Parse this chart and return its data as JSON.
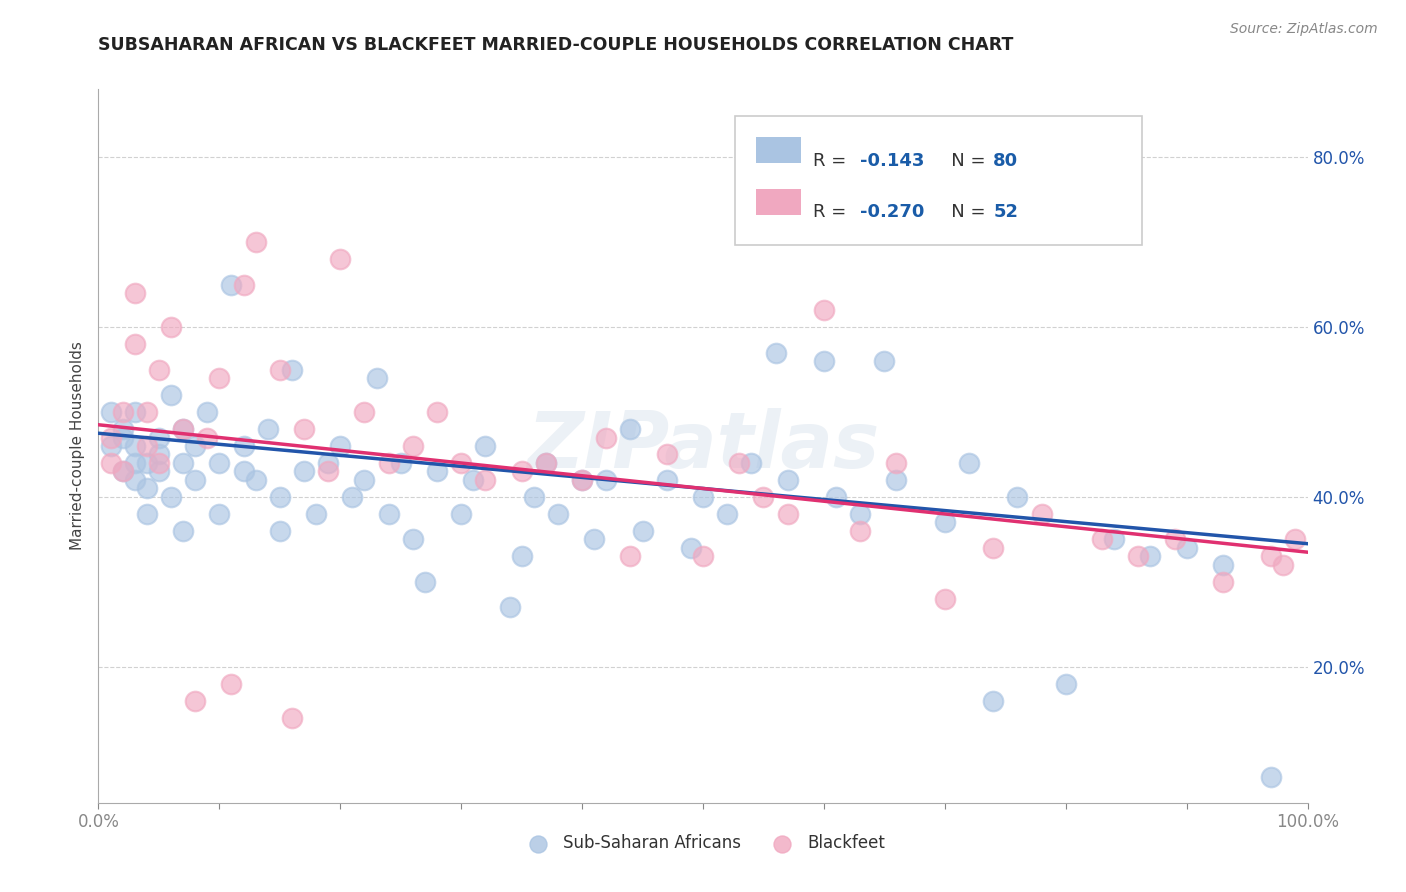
{
  "title": "SUBSAHARAN AFRICAN VS BLACKFEET MARRIED-COUPLE HOUSEHOLDS CORRELATION CHART",
  "source": "Source: ZipAtlas.com",
  "ylabel": "Married-couple Households",
  "legend_r_color": "#1a5ca8",
  "scatter_blue_color": "#aac4e2",
  "scatter_pink_color": "#f0a8c0",
  "line_blue_color": "#2255aa",
  "line_pink_color": "#e03070",
  "watermark": "ZIPatlas",
  "bg_color": "#ffffff",
  "grid_color": "#cccccc",
  "R_blue": -0.143,
  "N_blue": 80,
  "R_pink": -0.27,
  "N_pink": 52,
  "line_blue_start": 0.475,
  "line_blue_end": 0.345,
  "line_pink_start": 0.485,
  "line_pink_end": 0.335,
  "xmin": 0.0,
  "xmax": 1.0,
  "ymin": 0.04,
  "ymax": 0.88,
  "ytick_vals": [
    0.2,
    0.4,
    0.6,
    0.8
  ],
  "ytick_labels": [
    "20.0%",
    "40.0%",
    "60.0%",
    "80.0%"
  ],
  "xtick_vals": [
    0.0,
    0.1,
    0.2,
    0.3,
    0.4,
    0.5,
    0.6,
    0.7,
    0.8,
    0.9,
    1.0
  ],
  "blue_x": [
    0.01,
    0.01,
    0.02,
    0.02,
    0.02,
    0.03,
    0.03,
    0.03,
    0.03,
    0.04,
    0.04,
    0.04,
    0.05,
    0.05,
    0.05,
    0.06,
    0.06,
    0.07,
    0.07,
    0.07,
    0.08,
    0.08,
    0.09,
    0.1,
    0.1,
    0.11,
    0.12,
    0.12,
    0.13,
    0.14,
    0.15,
    0.15,
    0.16,
    0.17,
    0.18,
    0.19,
    0.2,
    0.21,
    0.22,
    0.23,
    0.24,
    0.25,
    0.26,
    0.27,
    0.28,
    0.3,
    0.31,
    0.32,
    0.34,
    0.35,
    0.36,
    0.37,
    0.38,
    0.4,
    0.41,
    0.42,
    0.44,
    0.45,
    0.47,
    0.49,
    0.5,
    0.52,
    0.54,
    0.56,
    0.57,
    0.6,
    0.61,
    0.63,
    0.65,
    0.66,
    0.7,
    0.72,
    0.74,
    0.76,
    0.8,
    0.84,
    0.87,
    0.9,
    0.93,
    0.97
  ],
  "blue_y": [
    0.46,
    0.5,
    0.47,
    0.43,
    0.48,
    0.44,
    0.42,
    0.46,
    0.5,
    0.44,
    0.41,
    0.38,
    0.45,
    0.43,
    0.47,
    0.52,
    0.4,
    0.44,
    0.48,
    0.36,
    0.42,
    0.46,
    0.5,
    0.44,
    0.38,
    0.65,
    0.43,
    0.46,
    0.42,
    0.48,
    0.36,
    0.4,
    0.55,
    0.43,
    0.38,
    0.44,
    0.46,
    0.4,
    0.42,
    0.54,
    0.38,
    0.44,
    0.35,
    0.3,
    0.43,
    0.38,
    0.42,
    0.46,
    0.27,
    0.33,
    0.4,
    0.44,
    0.38,
    0.42,
    0.35,
    0.42,
    0.48,
    0.36,
    0.42,
    0.34,
    0.4,
    0.38,
    0.44,
    0.57,
    0.42,
    0.56,
    0.4,
    0.38,
    0.56,
    0.42,
    0.37,
    0.44,
    0.16,
    0.4,
    0.18,
    0.35,
    0.33,
    0.34,
    0.32,
    0.07
  ],
  "pink_x": [
    0.01,
    0.01,
    0.02,
    0.02,
    0.03,
    0.03,
    0.04,
    0.04,
    0.05,
    0.05,
    0.06,
    0.07,
    0.08,
    0.09,
    0.1,
    0.11,
    0.12,
    0.13,
    0.15,
    0.16,
    0.17,
    0.19,
    0.2,
    0.22,
    0.24,
    0.26,
    0.28,
    0.3,
    0.32,
    0.35,
    0.37,
    0.4,
    0.42,
    0.44,
    0.47,
    0.5,
    0.53,
    0.55,
    0.57,
    0.6,
    0.63,
    0.66,
    0.7,
    0.74,
    0.78,
    0.83,
    0.86,
    0.89,
    0.93,
    0.97,
    0.98,
    0.99
  ],
  "pink_y": [
    0.47,
    0.44,
    0.5,
    0.43,
    0.58,
    0.64,
    0.46,
    0.5,
    0.55,
    0.44,
    0.6,
    0.48,
    0.16,
    0.47,
    0.54,
    0.18,
    0.65,
    0.7,
    0.55,
    0.14,
    0.48,
    0.43,
    0.68,
    0.5,
    0.44,
    0.46,
    0.5,
    0.44,
    0.42,
    0.43,
    0.44,
    0.42,
    0.47,
    0.33,
    0.45,
    0.33,
    0.44,
    0.4,
    0.38,
    0.62,
    0.36,
    0.44,
    0.28,
    0.34,
    0.38,
    0.35,
    0.33,
    0.35,
    0.3,
    0.33,
    0.32,
    0.35
  ]
}
